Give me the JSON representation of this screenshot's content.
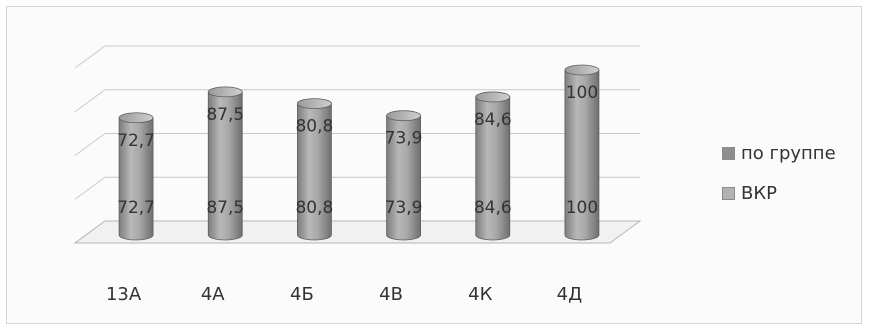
{
  "chart_data": {
    "type": "bar",
    "categories": [
      "13А",
      "4А",
      "4Б",
      "4В",
      "4К",
      "4Д"
    ],
    "series": [
      {
        "name": "по группе",
        "values": [
          "72,7",
          "87,5",
          "80,8",
          "73,9",
          "84,6",
          "100"
        ],
        "numeric": [
          72.7,
          87.5,
          80.8,
          73.9,
          84.6,
          100
        ],
        "color": "#a2a2a2"
      },
      {
        "name": "ВКР",
        "values": [
          "72,7",
          "87,5",
          "80,8",
          "73,9",
          "84,6",
          "100"
        ],
        "numeric": [
          72.7,
          87.5,
          80.8,
          73.9,
          84.6,
          100
        ],
        "color": "#bdbdbd"
      }
    ],
    "title": "",
    "xlabel": "",
    "ylabel": "",
    "ylim": [
      0,
      100
    ],
    "grid": true,
    "legend_position": "right"
  }
}
